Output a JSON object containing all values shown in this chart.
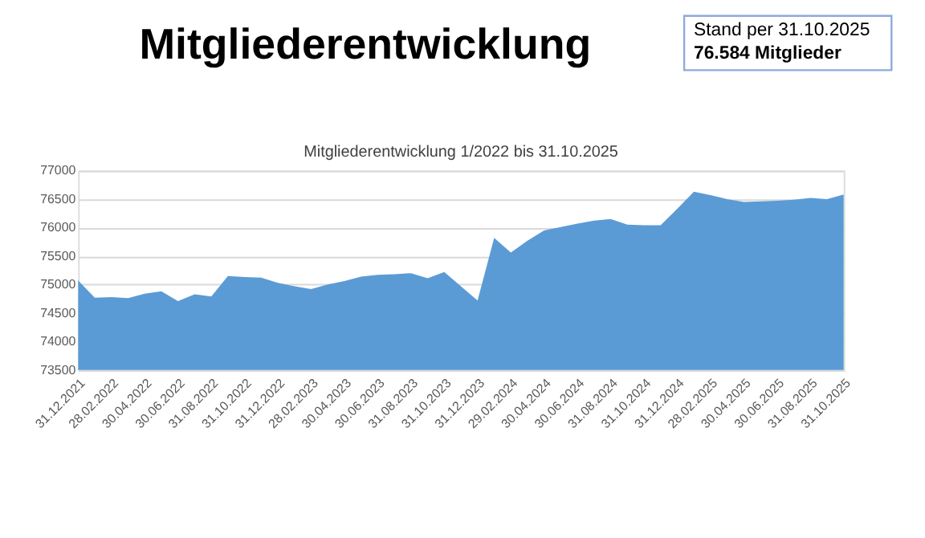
{
  "chart_data": {
    "type": "area",
    "title": "Mitgliederentwicklung",
    "subtitle": "Mitgliederentwicklung 1/2022 bis 31.10.2025",
    "annotations": [
      "Stand per 31.10.2025",
      "76.584 Mitglieder"
    ],
    "categories": [
      "31.12.2021",
      null,
      "28.02.2022",
      null,
      "30.04.2022",
      null,
      "30.06.2022",
      null,
      "31.08.2022",
      null,
      "31.10.2022",
      null,
      "31.12.2022",
      null,
      "28.02.2023",
      null,
      "30.04.2023",
      null,
      "30.06.2023",
      null,
      "31.08.2023",
      null,
      "31.10.2023",
      null,
      "31.12.2023",
      null,
      "29.02.2024",
      null,
      "30.04.2024",
      null,
      "30.06.2024",
      null,
      "31.08.2024",
      null,
      "31.10.2024",
      null,
      "31.12.2024",
      null,
      "28.02.2025",
      null,
      "30.04.2025",
      null,
      "30.06.2025",
      null,
      "31.08.2025",
      null,
      "31.10.2025"
    ],
    "series": [
      {
        "color": "#5b9bd5",
        "values": [
          75070,
          74770,
          74780,
          74760,
          74840,
          74880,
          74710,
          74830,
          74790,
          75150,
          75130,
          75120,
          75030,
          74970,
          74920,
          75000,
          75060,
          75140,
          75170,
          75180,
          75200,
          75110,
          75220,
          74970,
          74720,
          75820,
          75560,
          75770,
          75950,
          76010,
          76070,
          76120,
          76150,
          76050,
          76040,
          76040,
          76330,
          76630,
          76570,
          76500,
          76450,
          76460,
          76470,
          76490,
          76520,
          76500,
          76580
        ]
      }
    ],
    "ylim": [
      73500,
      77000
    ],
    "yticks": [
      73500,
      74000,
      74500,
      75000,
      75500,
      76000,
      76500,
      77000
    ],
    "grid": "y"
  }
}
